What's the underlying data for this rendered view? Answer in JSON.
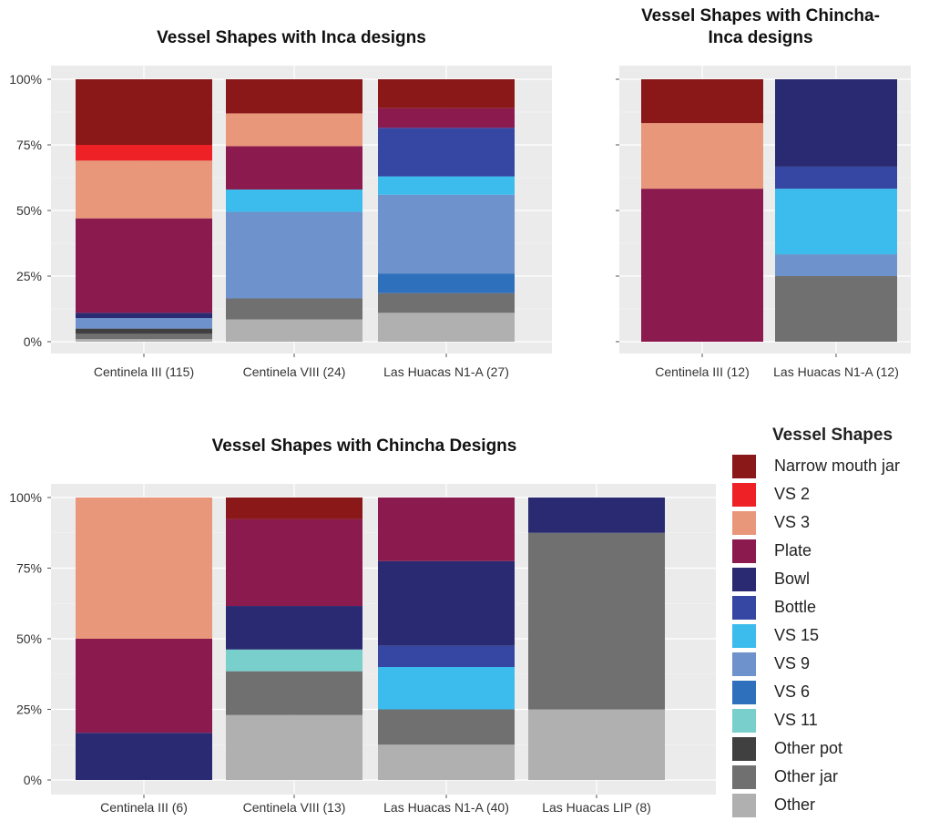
{
  "palette": {
    "Narrow mouth jar": "#8a1818",
    "VS 2": "#ee2226",
    "VS 3": "#e9977a",
    "Plate": "#8b1a4f",
    "Bowl": "#2a2a72",
    "Bottle": "#3546a3",
    "VS 15": "#3cbcec",
    "VS 9": "#6d92cc",
    "VS 6": "#2f70bd",
    "VS 11": "#79cfcb",
    "Other pot": "#404040",
    "Other jar": "#707070",
    "Other": "#b0b0b0"
  },
  "legend": {
    "title": "Vessel Shapes",
    "items": [
      "Narrow mouth jar",
      "VS 2",
      "VS 3",
      "Plate",
      "Bowl",
      "Bottle",
      "VS 15",
      "VS 9",
      "VS 6",
      "VS 11",
      "Other pot",
      "Other jar",
      "Other"
    ]
  },
  "chart_data": [
    {
      "type": "bar",
      "stacked": true,
      "title": "Vessel Shapes with Inca designs",
      "y_ticks": [
        "100%",
        "75%",
        "50%",
        "25%",
        "0%"
      ],
      "ylim": [
        0,
        100
      ],
      "categories": [
        "Centinela III (115)",
        "Centinela VIII (24)",
        "Las Huacas N1-A (27)"
      ],
      "series": [
        {
          "name": "Other",
          "values": [
            1,
            8.5,
            11
          ]
        },
        {
          "name": "Other jar",
          "values": [
            2,
            8,
            7.5
          ]
        },
        {
          "name": "Other pot",
          "values": [
            2,
            0,
            0
          ]
        },
        {
          "name": "VS 6",
          "values": [
            0,
            0,
            7.5
          ]
        },
        {
          "name": "VS 9",
          "values": [
            4,
            33,
            30
          ]
        },
        {
          "name": "VS 15",
          "values": [
            0,
            8.5,
            7
          ]
        },
        {
          "name": "Bottle",
          "values": [
            0,
            0,
            18.5
          ]
        },
        {
          "name": "Bowl",
          "values": [
            2,
            0,
            0
          ]
        },
        {
          "name": "Plate",
          "values": [
            36,
            16.5,
            7.5
          ]
        },
        {
          "name": "VS 3",
          "values": [
            22,
            12.5,
            0
          ]
        },
        {
          "name": "VS 2",
          "values": [
            6,
            0,
            0
          ]
        },
        {
          "name": "Narrow mouth jar",
          "values": [
            25,
            13,
            11
          ]
        }
      ]
    },
    {
      "type": "bar",
      "stacked": true,
      "title": "Vessel Shapes with Chincha-Inca designs",
      "y_ticks": [],
      "ylim": [
        0,
        100
      ],
      "categories": [
        "Centinela III (12)",
        "Las Huacas N1-A (12)"
      ],
      "series": [
        {
          "name": "Other jar",
          "values": [
            0,
            25
          ]
        },
        {
          "name": "VS 9",
          "values": [
            0,
            8.3
          ]
        },
        {
          "name": "VS 15",
          "values": [
            0,
            25
          ]
        },
        {
          "name": "Bottle",
          "values": [
            0,
            8.4
          ]
        },
        {
          "name": "Bowl",
          "values": [
            0,
            33.3
          ]
        },
        {
          "name": "Plate",
          "values": [
            58.3,
            0
          ]
        },
        {
          "name": "VS 3",
          "values": [
            25,
            0
          ]
        },
        {
          "name": "Narrow mouth jar",
          "values": [
            16.7,
            0
          ]
        }
      ]
    },
    {
      "type": "bar",
      "stacked": true,
      "title": "Vessel Shapes with Chincha Designs",
      "y_ticks": [
        "100%",
        "75%",
        "50%",
        "25%",
        "0%"
      ],
      "ylim": [
        0,
        100
      ],
      "categories": [
        "Centinela III (6)",
        "Centinela VIII (13)",
        "Las Huacas N1-A (40)",
        "Las Huacas LIP (8)"
      ],
      "series": [
        {
          "name": "Other",
          "values": [
            0,
            23,
            12.5,
            25
          ]
        },
        {
          "name": "Other jar",
          "values": [
            0,
            15.5,
            12.5,
            62.5
          ]
        },
        {
          "name": "VS 11",
          "values": [
            0,
            7.7,
            0,
            0
          ]
        },
        {
          "name": "VS 15",
          "values": [
            0,
            0,
            15,
            0
          ]
        },
        {
          "name": "Bottle",
          "values": [
            0,
            0,
            7.5,
            0
          ]
        },
        {
          "name": "Bowl",
          "values": [
            16.7,
            15.4,
            30,
            12.5
          ]
        },
        {
          "name": "Plate",
          "values": [
            33.3,
            30.7,
            22.5,
            0
          ]
        },
        {
          "name": "VS 3",
          "values": [
            50,
            0,
            0,
            0
          ]
        },
        {
          "name": "Narrow mouth jar",
          "values": [
            0,
            7.7,
            0,
            0
          ]
        }
      ]
    }
  ]
}
